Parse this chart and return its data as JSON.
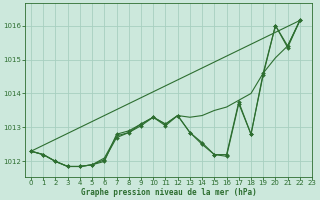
{
  "title": "Graphe pression niveau de la mer (hPa)",
  "background_color": "#cce8dc",
  "grid_color": "#a8cfc0",
  "line_color": "#2d6e30",
  "xlim": [
    -0.5,
    23
  ],
  "ylim": [
    1011.55,
    1016.65
  ],
  "yticks": [
    1012,
    1013,
    1014,
    1015,
    1016
  ],
  "xticks": [
    0,
    1,
    2,
    3,
    4,
    5,
    6,
    7,
    8,
    9,
    10,
    11,
    12,
    13,
    14,
    15,
    16,
    17,
    18,
    19,
    20,
    21,
    22,
    23
  ],
  "xlabel_fontsize": 5.5,
  "tick_fontsize": 5.0,
  "series_no_marker": [
    {
      "x": [
        0,
        22
      ],
      "y": [
        1012.3,
        1016.15
      ]
    },
    {
      "x": [
        0,
        1,
        2,
        3,
        4,
        5,
        6,
        7,
        8,
        9,
        10,
        11,
        12,
        13,
        14,
        15,
        16,
        17,
        18,
        19,
        20,
        21,
        22
      ],
      "y": [
        1012.3,
        1012.2,
        1012.0,
        1011.85,
        1011.85,
        1011.9,
        1012.1,
        1012.75,
        1012.85,
        1013.1,
        1013.3,
        1013.1,
        1013.35,
        1013.3,
        1013.35,
        1013.5,
        1013.6,
        1013.8,
        1014.0,
        1014.6,
        1015.05,
        1015.4,
        1016.15
      ]
    }
  ],
  "series_with_marker": [
    {
      "x": [
        0,
        1,
        2,
        3,
        4,
        5,
        6,
        7,
        8,
        9,
        10,
        11,
        12,
        13,
        14,
        15,
        16,
        17,
        18,
        19,
        20,
        21,
        22
      ],
      "y": [
        1012.3,
        1012.2,
        1012.0,
        1011.85,
        1011.85,
        1011.9,
        1012.0,
        1012.8,
        1012.9,
        1013.1,
        1013.3,
        1013.1,
        1013.35,
        1012.85,
        1012.55,
        1012.2,
        1012.2,
        1013.75,
        1012.8,
        1014.6,
        1016.0,
        1015.4,
        1016.15
      ]
    },
    {
      "x": [
        0,
        1,
        2,
        3,
        4,
        5,
        6,
        7,
        8,
        9,
        10,
        11,
        12,
        13,
        14,
        15,
        16,
        17,
        18,
        19,
        20,
        21,
        22
      ],
      "y": [
        1012.3,
        1012.2,
        1012.0,
        1011.85,
        1011.85,
        1011.9,
        1012.05,
        1012.7,
        1012.85,
        1013.05,
        1013.3,
        1013.05,
        1013.35,
        1012.85,
        1012.5,
        1012.2,
        1012.15,
        1013.7,
        1012.8,
        1014.55,
        1016.0,
        1015.35,
        1016.15
      ]
    }
  ]
}
